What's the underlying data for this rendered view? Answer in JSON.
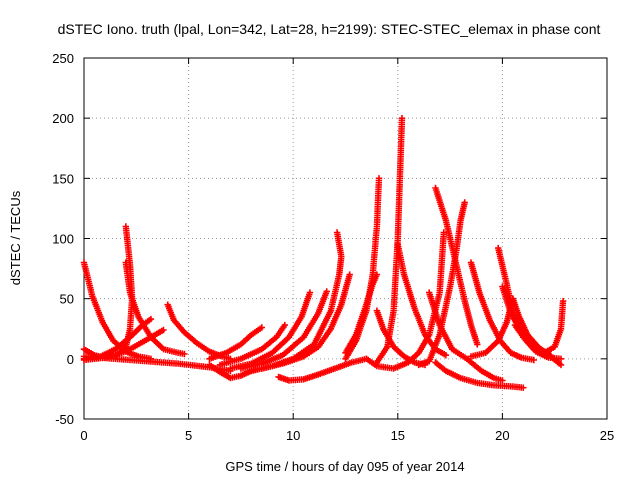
{
  "chart_data": {
    "type": "scatter",
    "title": "dSTEC Iono. truth (lpal, Lon=342, Lat=28, h=2199): STEC-STEC_elemax in phase cont",
    "xlabel": "GPS time / hours of day 095 of year 2014",
    "ylabel": "dSTEC  / TECUs",
    "xlim": [
      0,
      25
    ],
    "ylim": [
      -50,
      250
    ],
    "xticks": [
      0,
      5,
      10,
      15,
      20,
      25
    ],
    "yticks": [
      -50,
      0,
      50,
      100,
      150,
      200,
      250
    ],
    "grid": true,
    "grid_style": "dotted",
    "marker": "plus",
    "color": "#ff0000",
    "series": [
      {
        "points": [
          [
            0.0,
            80
          ],
          [
            0.4,
            52
          ],
          [
            0.9,
            30
          ],
          [
            1.4,
            15
          ],
          [
            2.0,
            6
          ],
          [
            2.6,
            2
          ],
          [
            3.2,
            0
          ]
        ]
      },
      {
        "points": [
          [
            0.0,
            8
          ],
          [
            0.5,
            3
          ],
          [
            1.0,
            1
          ],
          [
            1.5,
            2
          ],
          [
            2.0,
            10
          ],
          [
            2.2,
            25
          ],
          [
            2.3,
            50
          ],
          [
            2.2,
            78
          ],
          [
            2.0,
            110
          ]
        ]
      },
      {
        "points": [
          [
            0.0,
            0
          ],
          [
            0.8,
            2
          ],
          [
            1.5,
            8
          ],
          [
            2.2,
            18
          ],
          [
            2.8,
            28
          ],
          [
            3.2,
            33
          ]
        ]
      },
      {
        "points": [
          [
            0.0,
            -1
          ],
          [
            1.0,
            1
          ],
          [
            2.0,
            6
          ],
          [
            2.8,
            14
          ],
          [
            3.4,
            20
          ],
          [
            3.8,
            24
          ]
        ]
      },
      {
        "points": [
          [
            0.0,
            2
          ],
          [
            1.5,
            0
          ],
          [
            3.0,
            -2
          ],
          [
            4.5,
            -4
          ],
          [
            6.0,
            -7
          ],
          [
            7.0,
            -10
          ]
        ]
      },
      {
        "points": [
          [
            2.0,
            80
          ],
          [
            2.2,
            55
          ],
          [
            2.6,
            35
          ],
          [
            3.2,
            18
          ],
          [
            3.8,
            8
          ],
          [
            4.5,
            5
          ],
          [
            4.8,
            4
          ]
        ]
      },
      {
        "points": [
          [
            4.0,
            45
          ],
          [
            4.3,
            32
          ],
          [
            4.8,
            22
          ],
          [
            5.4,
            13
          ],
          [
            6.0,
            6
          ],
          [
            6.6,
            2
          ],
          [
            7.0,
            0
          ]
        ]
      },
      {
        "points": [
          [
            6.0,
            -5
          ],
          [
            6.5,
            -11
          ],
          [
            7.0,
            -16
          ],
          [
            7.5,
            -14
          ],
          [
            8.0,
            -10
          ],
          [
            8.5,
            -8
          ]
        ]
      },
      {
        "points": [
          [
            6.0,
            0
          ],
          [
            6.8,
            5
          ],
          [
            7.5,
            12
          ],
          [
            8.0,
            20
          ],
          [
            8.5,
            26
          ]
        ]
      },
      {
        "points": [
          [
            6.5,
            -5
          ],
          [
            7.5,
            0
          ],
          [
            8.5,
            8
          ],
          [
            9.2,
            18
          ],
          [
            9.6,
            28
          ]
        ]
      },
      {
        "points": [
          [
            7.0,
            -8
          ],
          [
            8.0,
            -4
          ],
          [
            9.0,
            5
          ],
          [
            9.8,
            18
          ],
          [
            10.4,
            35
          ],
          [
            10.8,
            55
          ]
        ]
      },
      {
        "points": [
          [
            7.5,
            -8
          ],
          [
            8.5,
            -4
          ],
          [
            9.5,
            3
          ],
          [
            10.5,
            18
          ],
          [
            11.2,
            38
          ],
          [
            11.6,
            56
          ]
        ]
      },
      {
        "points": [
          [
            8.0,
            -10
          ],
          [
            9.0,
            -6
          ],
          [
            10.0,
            0
          ],
          [
            11.0,
            12
          ],
          [
            11.8,
            40
          ],
          [
            12.2,
            70
          ],
          [
            12.3,
            85
          ],
          [
            12.1,
            105
          ]
        ]
      },
      {
        "points": [
          [
            8.5,
            -8
          ],
          [
            9.5,
            -4
          ],
          [
            10.5,
            2
          ],
          [
            11.2,
            10
          ],
          [
            11.8,
            25
          ],
          [
            12.3,
            45
          ],
          [
            12.7,
            70
          ]
        ]
      },
      {
        "points": [
          [
            9.3,
            -15
          ],
          [
            9.8,
            -18
          ],
          [
            10.5,
            -17
          ],
          [
            11.2,
            -13
          ],
          [
            12.0,
            -8
          ],
          [
            12.8,
            -3
          ],
          [
            13.5,
            0
          ]
        ]
      },
      {
        "points": [
          [
            12.5,
            0
          ],
          [
            13.0,
            15
          ],
          [
            13.5,
            40
          ],
          [
            13.8,
            70
          ],
          [
            14.0,
            110
          ],
          [
            14.1,
            150
          ]
        ]
      },
      {
        "points": [
          [
            12.5,
            5
          ],
          [
            13.0,
            20
          ],
          [
            13.4,
            40
          ],
          [
            13.8,
            62
          ],
          [
            14.0,
            70
          ]
        ]
      },
      {
        "points": [
          [
            14.0,
            40
          ],
          [
            14.3,
            25
          ],
          [
            14.8,
            10
          ],
          [
            15.3,
            2
          ],
          [
            15.8,
            -3
          ],
          [
            16.3,
            -5
          ]
        ]
      },
      {
        "points": [
          [
            14.0,
            -3
          ],
          [
            14.5,
            10
          ],
          [
            14.8,
            40
          ],
          [
            15.0,
            100
          ],
          [
            15.1,
            150
          ],
          [
            15.2,
            200
          ]
        ]
      },
      {
        "points": [
          [
            15.0,
            95
          ],
          [
            15.3,
            70
          ],
          [
            15.8,
            42
          ],
          [
            16.3,
            20
          ],
          [
            16.8,
            8
          ],
          [
            17.3,
            3
          ]
        ]
      },
      {
        "points": [
          [
            13.5,
            0
          ],
          [
            14.0,
            -6
          ],
          [
            14.8,
            -8
          ],
          [
            15.5,
            -3
          ],
          [
            16.0,
            5
          ],
          [
            16.5,
            20
          ],
          [
            17.0,
            55
          ],
          [
            17.1,
            80
          ],
          [
            17.2,
            105
          ]
        ]
      },
      {
        "points": [
          [
            16.0,
            -5
          ],
          [
            16.5,
            -2
          ],
          [
            17.0,
            20
          ],
          [
            17.5,
            60
          ],
          [
            17.8,
            90
          ],
          [
            18.0,
            115
          ],
          [
            18.2,
            130
          ]
        ]
      },
      {
        "points": [
          [
            16.8,
            142
          ],
          [
            17.3,
            115
          ],
          [
            17.8,
            78
          ],
          [
            18.2,
            48
          ],
          [
            18.5,
            28
          ],
          [
            18.8,
            12
          ]
        ]
      },
      {
        "points": [
          [
            16.5,
            55
          ],
          [
            17.0,
            28
          ],
          [
            17.6,
            8
          ],
          [
            18.3,
            0
          ],
          [
            19.0,
            -10
          ],
          [
            19.6,
            -16
          ],
          [
            20.0,
            -18
          ]
        ]
      },
      {
        "points": [
          [
            16.8,
            -3
          ],
          [
            17.3,
            -10
          ],
          [
            18.0,
            -16
          ],
          [
            18.8,
            -20
          ],
          [
            19.6,
            -22
          ],
          [
            20.5,
            -23
          ],
          [
            21.0,
            -24
          ]
        ]
      },
      {
        "points": [
          [
            18.5,
            80
          ],
          [
            18.9,
            55
          ],
          [
            19.4,
            32
          ],
          [
            19.9,
            15
          ],
          [
            20.4,
            5
          ],
          [
            20.9,
            1
          ],
          [
            21.5,
            -1
          ]
        ]
      },
      {
        "points": [
          [
            18.5,
            2
          ],
          [
            19.2,
            5
          ],
          [
            19.8,
            15
          ],
          [
            20.2,
            30
          ],
          [
            20.5,
            50
          ]
        ]
      },
      {
        "points": [
          [
            19.8,
            92
          ],
          [
            20.1,
            70
          ],
          [
            20.5,
            40
          ],
          [
            21.0,
            18
          ],
          [
            21.6,
            6
          ],
          [
            22.2,
            1
          ],
          [
            22.8,
            0
          ]
        ]
      },
      {
        "points": [
          [
            20.0,
            60
          ],
          [
            20.4,
            38
          ],
          [
            20.9,
            22
          ],
          [
            21.5,
            12
          ],
          [
            22.1,
            5
          ],
          [
            22.8,
            -5
          ]
        ]
      },
      {
        "points": [
          [
            20.5,
            50
          ],
          [
            20.8,
            35
          ],
          [
            21.2,
            20
          ],
          [
            21.8,
            8
          ],
          [
            22.3,
            3
          ]
        ]
      },
      {
        "points": [
          [
            20.6,
            28
          ],
          [
            21.0,
            18
          ],
          [
            21.5,
            8
          ],
          [
            22.0,
            5
          ],
          [
            22.5,
            10
          ],
          [
            22.8,
            25
          ],
          [
            22.9,
            48
          ]
        ]
      }
    ]
  }
}
